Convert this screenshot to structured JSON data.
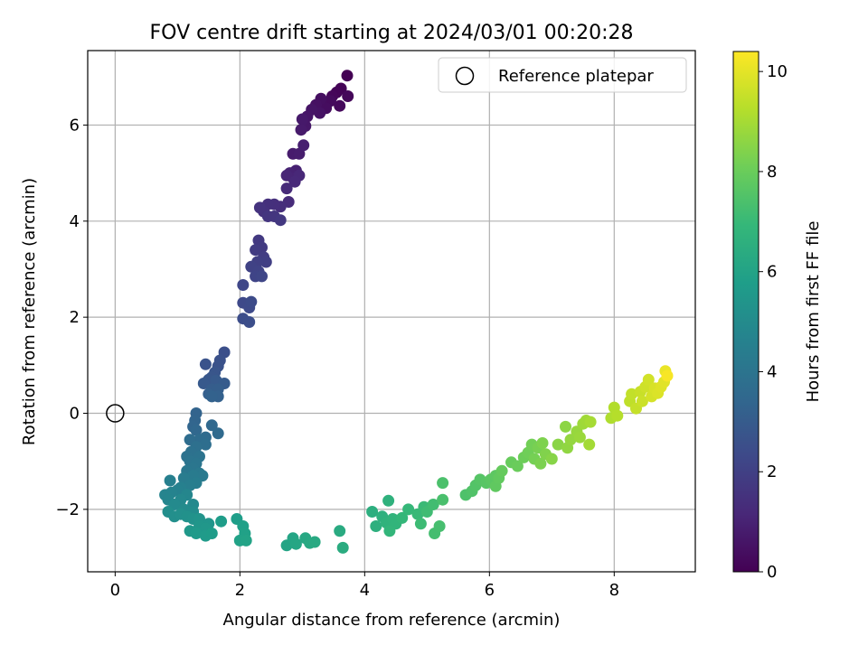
{
  "chart_data": {
    "type": "scatter",
    "title": "FOV centre drift starting at 2024/03/01 00:20:28",
    "xlabel": "Angular distance from reference (arcmin)",
    "ylabel": "Rotation from reference (arcmin)",
    "xlim": [
      -0.44,
      9.3
    ],
    "ylim": [
      -3.3,
      7.55
    ],
    "xticks": [
      0,
      2,
      4,
      6,
      8
    ],
    "yticks": [
      -2,
      0,
      2,
      4,
      6
    ],
    "grid": true,
    "legend": {
      "placement": "top-right",
      "entries": [
        "Reference platepar"
      ]
    },
    "reference_point": {
      "label": "Reference platepar",
      "x": 0,
      "y": 0
    },
    "colorbar": {
      "label": "Hours from first FF file",
      "min": 0,
      "max": 10.4,
      "ticks": [
        0,
        2,
        4,
        6,
        8,
        10
      ],
      "colormap": "viridis"
    },
    "colormap_stops": [
      "#440154",
      "#482878",
      "#3e4989",
      "#31688e",
      "#26828e",
      "#1f9e89",
      "#35b779",
      "#6ece58",
      "#b5de2b",
      "#fde725"
    ],
    "points_columns": [
      "x_arcmin",
      "y_arcmin",
      "hours"
    ],
    "points": [
      [
        3.72,
        7.03,
        0.0
      ],
      [
        3.62,
        6.76,
        0.05
      ],
      [
        3.55,
        6.68,
        0.1
      ],
      [
        3.48,
        6.6,
        0.15
      ],
      [
        3.73,
        6.6,
        0.2
      ],
      [
        3.6,
        6.4,
        0.25
      ],
      [
        3.45,
        6.5,
        0.3
      ],
      [
        3.38,
        6.35,
        0.35
      ],
      [
        3.3,
        6.55,
        0.4
      ],
      [
        3.22,
        6.42,
        0.45
      ],
      [
        3.28,
        6.25,
        0.5
      ],
      [
        3.15,
        6.32,
        0.55
      ],
      [
        3.08,
        6.18,
        0.6
      ],
      [
        3.05,
        5.98,
        0.65
      ],
      [
        3.0,
        6.12,
        0.7
      ],
      [
        2.98,
        5.9,
        0.75
      ],
      [
        2.85,
        5.4,
        0.8
      ],
      [
        2.95,
        5.4,
        0.85
      ],
      [
        3.02,
        5.58,
        0.9
      ],
      [
        2.9,
        5.05,
        0.95
      ],
      [
        2.8,
        5.0,
        1.0
      ],
      [
        2.85,
        4.9,
        1.05
      ],
      [
        2.75,
        4.95,
        1.1
      ],
      [
        2.95,
        4.95,
        1.15
      ],
      [
        2.88,
        4.82,
        1.2
      ],
      [
        2.75,
        4.68,
        1.25
      ],
      [
        2.78,
        4.4,
        1.3
      ],
      [
        2.65,
        4.3,
        1.35
      ],
      [
        2.55,
        4.35,
        1.4
      ],
      [
        2.45,
        4.35,
        1.45
      ],
      [
        2.38,
        4.2,
        1.5
      ],
      [
        2.32,
        4.28,
        1.55
      ],
      [
        2.45,
        4.1,
        1.6
      ],
      [
        2.55,
        4.1,
        1.65
      ],
      [
        2.65,
        4.02,
        1.7
      ],
      [
        2.3,
        3.6,
        1.75
      ],
      [
        2.35,
        3.45,
        1.8
      ],
      [
        2.25,
        3.4,
        1.85
      ],
      [
        2.38,
        3.25,
        1.9
      ],
      [
        2.42,
        3.15,
        1.95
      ],
      [
        2.28,
        3.15,
        2.0
      ],
      [
        2.18,
        3.05,
        2.05
      ],
      [
        2.3,
        2.95,
        2.1
      ],
      [
        2.25,
        2.85,
        2.15
      ],
      [
        2.35,
        2.85,
        2.2
      ],
      [
        2.05,
        2.67,
        2.25
      ],
      [
        2.05,
        2.3,
        2.3
      ],
      [
        2.15,
        2.2,
        2.35
      ],
      [
        2.18,
        2.32,
        2.4
      ],
      [
        2.05,
        1.97,
        2.45
      ],
      [
        2.15,
        1.9,
        2.5
      ],
      [
        1.75,
        1.27,
        2.55
      ],
      [
        1.68,
        1.1,
        2.6
      ],
      [
        1.65,
        0.98,
        2.65
      ],
      [
        1.45,
        1.02,
        2.7
      ],
      [
        1.6,
        0.85,
        2.75
      ],
      [
        1.55,
        0.75,
        2.8
      ],
      [
        1.5,
        0.7,
        2.85
      ],
      [
        1.42,
        0.62,
        2.9
      ],
      [
        1.62,
        0.68,
        2.95
      ],
      [
        1.75,
        0.62,
        3.0
      ],
      [
        1.55,
        0.5,
        3.05
      ],
      [
        1.65,
        0.5,
        3.1
      ],
      [
        1.5,
        0.4,
        3.15
      ],
      [
        1.65,
        0.35,
        3.2
      ],
      [
        1.55,
        0.35,
        3.25
      ],
      [
        1.3,
        0.0,
        3.3
      ],
      [
        1.28,
        -0.15,
        3.35
      ],
      [
        1.25,
        -0.28,
        3.4
      ],
      [
        1.3,
        -0.35,
        3.45
      ],
      [
        1.55,
        -0.25,
        3.5
      ],
      [
        1.65,
        -0.42,
        3.55
      ],
      [
        1.45,
        -0.5,
        3.6
      ],
      [
        1.35,
        -0.55,
        3.65
      ],
      [
        1.2,
        -0.55,
        3.7
      ],
      [
        1.45,
        -0.65,
        3.75
      ],
      [
        1.3,
        -0.7,
        3.8
      ],
      [
        1.22,
        -0.8,
        3.85
      ],
      [
        1.15,
        -0.9,
        3.9
      ],
      [
        1.35,
        -0.9,
        3.95
      ],
      [
        1.2,
        -1.0,
        4.0
      ],
      [
        1.3,
        -1.05,
        4.05
      ],
      [
        1.25,
        -1.15,
        4.1
      ],
      [
        1.15,
        -1.2,
        4.15
      ],
      [
        1.35,
        -1.25,
        4.2
      ],
      [
        1.4,
        -1.3,
        4.25
      ],
      [
        1.25,
        -1.3,
        4.3
      ],
      [
        1.1,
        -1.35,
        4.35
      ],
      [
        1.3,
        -1.45,
        4.4
      ],
      [
        1.2,
        -1.5,
        4.45
      ],
      [
        0.88,
        -1.4,
        4.5
      ],
      [
        1.05,
        -1.55,
        4.55
      ],
      [
        1.0,
        -1.6,
        4.6
      ],
      [
        0.9,
        -1.65,
        4.65
      ],
      [
        0.8,
        -1.7,
        4.7
      ],
      [
        0.85,
        -1.8,
        4.75
      ],
      [
        1.15,
        -1.7,
        4.8
      ],
      [
        1.05,
        -1.8,
        4.85
      ],
      [
        1.25,
        -1.9,
        4.9
      ],
      [
        0.95,
        -1.9,
        4.95
      ],
      [
        1.1,
        -2.0,
        5.0
      ],
      [
        1.25,
        -2.05,
        5.05
      ],
      [
        0.85,
        -2.05,
        5.1
      ],
      [
        0.95,
        -2.15,
        5.15
      ],
      [
        1.05,
        -2.1,
        5.2
      ],
      [
        1.15,
        -2.15,
        5.25
      ],
      [
        1.25,
        -2.2,
        5.3
      ],
      [
        1.35,
        -2.2,
        5.35
      ],
      [
        1.5,
        -2.3,
        5.4
      ],
      [
        1.35,
        -2.35,
        5.45
      ],
      [
        1.45,
        -2.4,
        5.5
      ],
      [
        1.2,
        -2.45,
        5.55
      ],
      [
        1.3,
        -2.5,
        5.6
      ],
      [
        1.45,
        -2.55,
        5.65
      ],
      [
        1.55,
        -2.5,
        5.7
      ],
      [
        1.7,
        -2.25,
        5.75
      ],
      [
        1.95,
        -2.2,
        5.8
      ],
      [
        2.05,
        -2.35,
        5.85
      ],
      [
        2.08,
        -2.5,
        5.9
      ],
      [
        2.0,
        -2.65,
        5.95
      ],
      [
        2.1,
        -2.65,
        6.0
      ],
      [
        2.75,
        -2.75,
        6.05
      ],
      [
        2.85,
        -2.6,
        6.1
      ],
      [
        2.9,
        -2.72,
        6.15
      ],
      [
        3.05,
        -2.6,
        6.2
      ],
      [
        3.12,
        -2.7,
        6.25
      ],
      [
        3.2,
        -2.68,
        6.3
      ],
      [
        3.6,
        -2.45,
        6.35
      ],
      [
        3.65,
        -2.8,
        6.4
      ],
      [
        4.12,
        -2.05,
        6.5
      ],
      [
        4.18,
        -2.35,
        6.55
      ],
      [
        4.28,
        -2.15,
        6.6
      ],
      [
        4.38,
        -1.82,
        6.65
      ],
      [
        4.35,
        -2.28,
        6.7
      ],
      [
        4.45,
        -2.2,
        6.75
      ],
      [
        4.5,
        -2.3,
        6.8
      ],
      [
        4.4,
        -2.45,
        6.85
      ],
      [
        4.6,
        -2.18,
        6.9
      ],
      [
        4.7,
        -2.0,
        6.95
      ],
      [
        4.85,
        -2.1,
        7.0
      ],
      [
        4.95,
        -1.95,
        7.05
      ],
      [
        4.9,
        -2.3,
        7.1
      ],
      [
        5.0,
        -2.05,
        7.15
      ],
      [
        5.1,
        -1.9,
        7.2
      ],
      [
        5.12,
        -2.5,
        7.25
      ],
      [
        5.2,
        -2.35,
        7.3
      ],
      [
        5.25,
        -1.8,
        7.35
      ],
      [
        5.25,
        -1.45,
        7.4
      ],
      [
        5.62,
        -1.7,
        7.45
      ],
      [
        5.72,
        -1.62,
        7.5
      ],
      [
        5.78,
        -1.5,
        7.55
      ],
      [
        5.85,
        -1.38,
        7.6
      ],
      [
        5.95,
        -1.45,
        7.65
      ],
      [
        6.02,
        -1.38,
        7.7
      ],
      [
        6.1,
        -1.3,
        7.75
      ],
      [
        6.1,
        -1.52,
        7.8
      ],
      [
        6.15,
        -1.35,
        7.85
      ],
      [
        6.2,
        -1.2,
        7.9
      ],
      [
        6.35,
        -1.02,
        7.95
      ],
      [
        6.45,
        -1.1,
        8.0
      ],
      [
        6.55,
        -0.92,
        8.05
      ],
      [
        6.62,
        -0.82,
        8.1
      ],
      [
        6.68,
        -0.65,
        8.15
      ],
      [
        6.72,
        -0.95,
        8.2
      ],
      [
        6.78,
        -0.72,
        8.25
      ],
      [
        6.82,
        -1.05,
        8.3
      ],
      [
        6.85,
        -0.62,
        8.35
      ],
      [
        6.9,
        -0.85,
        8.4
      ],
      [
        7.0,
        -0.95,
        8.5
      ],
      [
        7.1,
        -0.65,
        8.55
      ],
      [
        7.22,
        -0.28,
        8.6
      ],
      [
        7.25,
        -0.72,
        8.65
      ],
      [
        7.3,
        -0.55,
        8.7
      ],
      [
        7.4,
        -0.38,
        8.75
      ],
      [
        7.45,
        -0.5,
        8.8
      ],
      [
        7.5,
        -0.22,
        8.85
      ],
      [
        7.55,
        -0.15,
        8.9
      ],
      [
        7.6,
        -0.65,
        8.95
      ],
      [
        7.62,
        -0.18,
        9.0
      ],
      [
        7.95,
        -0.1,
        9.15
      ],
      [
        8.0,
        0.12,
        9.2
      ],
      [
        8.05,
        -0.05,
        9.25
      ],
      [
        8.25,
        0.25,
        9.4
      ],
      [
        8.28,
        0.4,
        9.45
      ],
      [
        8.35,
        0.1,
        9.5
      ],
      [
        8.42,
        0.45,
        9.55
      ],
      [
        8.45,
        0.25,
        9.6
      ],
      [
        8.5,
        0.55,
        9.65
      ],
      [
        8.55,
        0.7,
        9.7
      ],
      [
        8.6,
        0.35,
        9.75
      ],
      [
        8.65,
        0.52,
        9.8
      ],
      [
        8.7,
        0.42,
        9.85
      ],
      [
        8.75,
        0.55,
        9.9
      ],
      [
        8.8,
        0.65,
        9.95
      ],
      [
        8.82,
        0.88,
        10.1
      ],
      [
        8.85,
        0.78,
        10.3
      ]
    ]
  }
}
